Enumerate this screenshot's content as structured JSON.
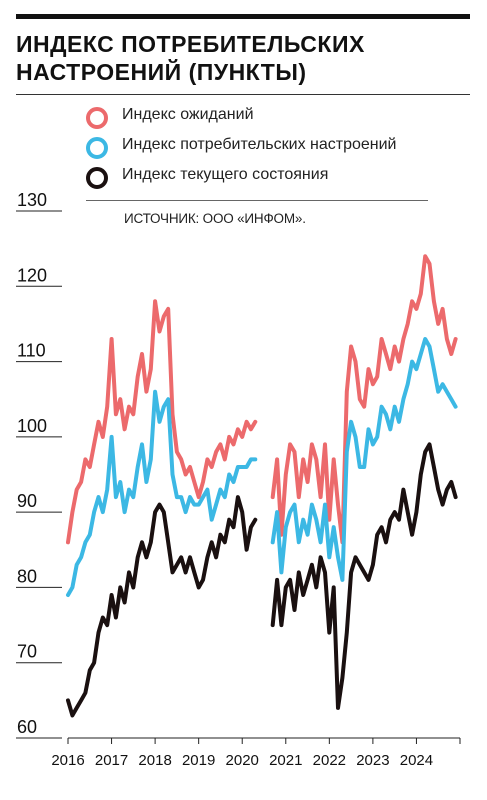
{
  "title_lines": [
    "ИНДЕКС ПОТРЕБИТЕЛЬСКИХ",
    "НАСТРОЕНИЙ (ПУНКТЫ)"
  ],
  "source": "ИСТОЧНИК: ООО «ИНФОМ».",
  "colors": {
    "expectations": "#ec6a6c",
    "sentiment": "#3cb8e4",
    "current": "#1a1010",
    "text": "#111111",
    "grid": "#222222"
  },
  "chart_data": {
    "type": "line",
    "title": "ИНДЕКС ПОТРЕБИТЕЛЬСКИХ НАСТРОЕНИЙ (ПУНКТЫ)",
    "xlabel": "",
    "ylabel": "",
    "ylim": [
      60,
      130
    ],
    "y_ticks": [
      "60",
      "70",
      "80",
      "90",
      "100",
      "110",
      "120",
      "130"
    ],
    "x_ticks": [
      "2016",
      "2017",
      "2018",
      "2019",
      "2020",
      "2021",
      "2022",
      "2023",
      "2024"
    ],
    "xlim": [
      2016,
      2025
    ],
    "grid": false,
    "legend_position": "top-left",
    "gap": [
      2020.5,
      2020.7
    ],
    "series": [
      {
        "name": "Индекс ожиданий",
        "color": "#ec6a6c",
        "x": [
          2016.0,
          2016.1,
          2016.2,
          2016.3,
          2016.4,
          2016.5,
          2016.6,
          2016.7,
          2016.8,
          2016.9,
          2017.0,
          2017.1,
          2017.2,
          2017.3,
          2017.4,
          2017.5,
          2017.6,
          2017.7,
          2017.8,
          2017.9,
          2018.0,
          2018.1,
          2018.2,
          2018.3,
          2018.4,
          2018.5,
          2018.6,
          2018.7,
          2018.8,
          2018.9,
          2019.0,
          2019.1,
          2019.2,
          2019.3,
          2019.4,
          2019.5,
          2019.6,
          2019.7,
          2019.8,
          2019.9,
          2020.0,
          2020.1,
          2020.2,
          2020.3,
          null,
          2020.7,
          2020.8,
          2020.9,
          2021.0,
          2021.1,
          2021.2,
          2021.3,
          2021.4,
          2021.5,
          2021.6,
          2021.7,
          2021.8,
          2021.9,
          2022.0,
          2022.1,
          2022.2,
          2022.3,
          2022.4,
          2022.5,
          2022.6,
          2022.7,
          2022.8,
          2022.9,
          2023.0,
          2023.1,
          2023.2,
          2023.3,
          2023.4,
          2023.5,
          2023.6,
          2023.7,
          2023.8,
          2023.9,
          2024.0,
          2024.1,
          2024.2,
          2024.3,
          2024.4,
          2024.5,
          2024.6,
          2024.7,
          2024.8,
          2024.9
        ],
        "values": [
          86,
          90,
          93,
          94,
          97,
          96,
          99,
          102,
          100,
          104,
          113,
          103,
          105,
          101,
          104,
          103,
          108,
          111,
          106,
          109,
          118,
          114,
          116,
          117,
          103,
          98,
          97,
          95,
          96,
          94,
          92,
          94,
          97,
          96,
          98,
          99,
          97,
          100,
          99,
          101,
          100,
          102,
          101,
          102,
          null,
          92,
          97,
          87,
          95,
          99,
          98,
          92,
          97,
          94,
          99,
          97,
          92,
          99,
          89,
          97,
          91,
          86,
          106,
          112,
          110,
          105,
          104,
          109,
          107,
          108,
          113,
          111,
          109,
          112,
          110,
          113,
          115,
          118,
          117,
          119,
          124,
          123,
          118,
          115,
          117,
          113,
          111,
          113
        ]
      },
      {
        "name": "Индекс потребительских настроений",
        "color": "#3cb8e4",
        "x": [
          2016.0,
          2016.1,
          2016.2,
          2016.3,
          2016.4,
          2016.5,
          2016.6,
          2016.7,
          2016.8,
          2016.9,
          2017.0,
          2017.1,
          2017.2,
          2017.3,
          2017.4,
          2017.5,
          2017.6,
          2017.7,
          2017.8,
          2017.9,
          2018.0,
          2018.1,
          2018.2,
          2018.3,
          2018.4,
          2018.5,
          2018.6,
          2018.7,
          2018.8,
          2018.9,
          2019.0,
          2019.1,
          2019.2,
          2019.3,
          2019.4,
          2019.5,
          2019.6,
          2019.7,
          2019.8,
          2019.9,
          2020.0,
          2020.1,
          2020.2,
          2020.3,
          null,
          2020.7,
          2020.8,
          2020.9,
          2021.0,
          2021.1,
          2021.2,
          2021.3,
          2021.4,
          2021.5,
          2021.6,
          2021.7,
          2021.8,
          2021.9,
          2022.0,
          2022.1,
          2022.2,
          2022.3,
          2022.4,
          2022.5,
          2022.6,
          2022.7,
          2022.8,
          2022.9,
          2023.0,
          2023.1,
          2023.2,
          2023.3,
          2023.4,
          2023.5,
          2023.6,
          2023.7,
          2023.8,
          2023.9,
          2024.0,
          2024.1,
          2024.2,
          2024.3,
          2024.4,
          2024.5,
          2024.6,
          2024.7,
          2024.8,
          2024.9
        ],
        "values": [
          79,
          80,
          83,
          84,
          86,
          87,
          90,
          92,
          90,
          93,
          100,
          92,
          94,
          90,
          93,
          92,
          96,
          99,
          94,
          97,
          106,
          102,
          104,
          105,
          95,
          92,
          92,
          90,
          92,
          91,
          91,
          92,
          93,
          89,
          91,
          93,
          92,
          95,
          94,
          96,
          96,
          96,
          97,
          97,
          null,
          86,
          90,
          82,
          88,
          90,
          91,
          86,
          89,
          87,
          91,
          89,
          86,
          91,
          84,
          88,
          84,
          81,
          98,
          102,
          100,
          96,
          96,
          101,
          99,
          100,
          104,
          103,
          101,
          104,
          102,
          105,
          107,
          110,
          109,
          111,
          113,
          112,
          109,
          106,
          107,
          106,
          105,
          104
        ]
      },
      {
        "name": "Индекс текущего состояния",
        "color": "#1a1010",
        "x": [
          2016.0,
          2016.1,
          2016.2,
          2016.3,
          2016.4,
          2016.5,
          2016.6,
          2016.7,
          2016.8,
          2016.9,
          2017.0,
          2017.1,
          2017.2,
          2017.3,
          2017.4,
          2017.5,
          2017.6,
          2017.7,
          2017.8,
          2017.9,
          2018.0,
          2018.1,
          2018.2,
          2018.3,
          2018.4,
          2018.5,
          2018.6,
          2018.7,
          2018.8,
          2018.9,
          2019.0,
          2019.1,
          2019.2,
          2019.3,
          2019.4,
          2019.5,
          2019.6,
          2019.7,
          2019.8,
          2019.9,
          2020.0,
          2020.1,
          2020.2,
          2020.3,
          null,
          2020.7,
          2020.8,
          2020.9,
          2021.0,
          2021.1,
          2021.2,
          2021.3,
          2021.4,
          2021.5,
          2021.6,
          2021.7,
          2021.8,
          2021.9,
          2022.0,
          2022.1,
          2022.2,
          2022.3,
          2022.4,
          2022.5,
          2022.6,
          2022.7,
          2022.8,
          2022.9,
          2023.0,
          2023.1,
          2023.2,
          2023.3,
          2023.4,
          2023.5,
          2023.6,
          2023.7,
          2023.8,
          2023.9,
          2024.0,
          2024.1,
          2024.2,
          2024.3,
          2024.4,
          2024.5,
          2024.6,
          2024.7,
          2024.8,
          2024.9
        ],
        "values": [
          65,
          63,
          64,
          65,
          66,
          69,
          70,
          74,
          76,
          75,
          79,
          76,
          80,
          78,
          82,
          80,
          84,
          86,
          84,
          86,
          90,
          91,
          90,
          86,
          82,
          83,
          84,
          82,
          84,
          82,
          80,
          81,
          84,
          86,
          84,
          87,
          86,
          89,
          88,
          92,
          90,
          85,
          88,
          89,
          null,
          75,
          81,
          75,
          80,
          81,
          77,
          82,
          79,
          81,
          83,
          80,
          84,
          82,
          74,
          80,
          64,
          68,
          74,
          82,
          84,
          83,
          82,
          81,
          83,
          87,
          88,
          86,
          89,
          90,
          89,
          93,
          90,
          87,
          90,
          95,
          98,
          99,
          96,
          93,
          91,
          93,
          94,
          92
        ]
      }
    ]
  }
}
